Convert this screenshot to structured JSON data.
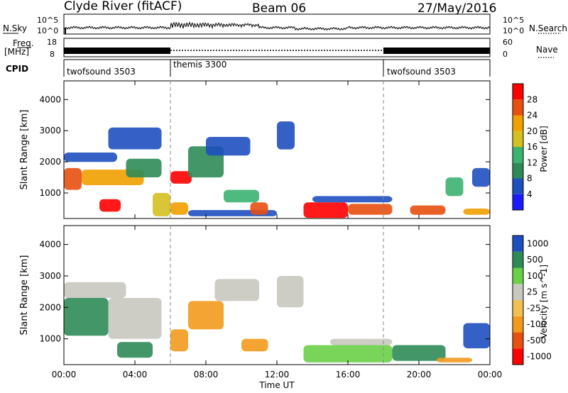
{
  "header": {
    "station": "Clyde River (fitACF)",
    "beam": "Beam 06",
    "date": "27/May/2016"
  },
  "side_labels": {
    "nsky": "N.Sky",
    "nsearch": "N.Search",
    "freq_line1": "Freq.",
    "freq_line2": "[MHz]",
    "nave": "Nave",
    "cpid": "CPID"
  },
  "colors": {
    "power_scale": [
      "#1a1aff",
      "#1f4fbf",
      "#2e8b57",
      "#3cb371",
      "#d4c020",
      "#f0a000",
      "#e85010",
      "#ff0000"
    ],
    "velocity_scale": [
      "#ff0000",
      "#e85010",
      "#f39a1c",
      "#f0c050",
      "#c8c8c0",
      "#6ad048",
      "#2e8b57",
      "#1f4fbf"
    ]
  },
  "chart_data": [
    {
      "type": "line",
      "name": "noise-panel",
      "left_axis_label": "N.Sky",
      "right_axis_label": "N.Search",
      "left_ticks": [
        "10^5",
        "10^0"
      ],
      "right_ticks": [
        "10^5",
        "10^0"
      ],
      "ylim": [
        0,
        5
      ]
    },
    {
      "type": "line",
      "name": "frequency-nave-panel",
      "left_axis_label": "Freq. [MHz]",
      "right_axis_label": "Nave",
      "left_ticks": [
        "18",
        "8"
      ],
      "right_ticks": [
        "60",
        "0"
      ],
      "freq_segments": [
        {
          "start_hr": 0.0,
          "end_hr": 6.0,
          "freq_mhz": 11.0
        },
        {
          "start_hr": 6.0,
          "end_hr": 18.0,
          "freq_mhz": 10.5
        },
        {
          "start_hr": 18.0,
          "end_hr": 24.0,
          "freq_mhz": 11.0
        }
      ]
    },
    {
      "type": "table",
      "name": "cpid-panel",
      "label": "CPID",
      "segments": [
        {
          "start_hr": 0.0,
          "end_hr": 6.0,
          "label": "twofsound 3503"
        },
        {
          "start_hr": 6.0,
          "end_hr": 18.0,
          "label": "themis 3300"
        },
        {
          "start_hr": 18.0,
          "end_hr": 24.0,
          "label": "twofsound 3503"
        }
      ]
    },
    {
      "type": "heatmap",
      "name": "power-panel",
      "ylabel": "Slant Range [km]",
      "yticks": [
        1000,
        2000,
        3000,
        4000
      ],
      "ylim": [
        180,
        4600
      ],
      "colorbar_label": "Power [dB]",
      "colorbar_ticks": [
        "4",
        "8",
        "12",
        "16",
        "20",
        "24",
        "28"
      ],
      "patches": [
        {
          "t0": 0.0,
          "t1": 1.0,
          "r0": 1100,
          "r1": 1800,
          "level": 6
        },
        {
          "t0": 0.0,
          "t1": 3.0,
          "r0": 2000,
          "r1": 2300,
          "level": 1
        },
        {
          "t0": 1.0,
          "t1": 4.5,
          "r0": 1250,
          "r1": 1750,
          "level": 5
        },
        {
          "t0": 2.0,
          "t1": 3.2,
          "r0": 400,
          "r1": 800,
          "level": 7
        },
        {
          "t0": 2.5,
          "t1": 5.5,
          "r0": 2400,
          "r1": 3100,
          "level": 1
        },
        {
          "t0": 3.5,
          "t1": 5.5,
          "r0": 1500,
          "r1": 2100,
          "level": 2
        },
        {
          "t0": 5.0,
          "t1": 6.0,
          "r0": 250,
          "r1": 1000,
          "level": 4
        },
        {
          "t0": 6.0,
          "t1": 7.2,
          "r0": 1300,
          "r1": 1700,
          "level": 7
        },
        {
          "t0": 6.0,
          "t1": 7.0,
          "r0": 300,
          "r1": 700,
          "level": 5
        },
        {
          "t0": 7.0,
          "t1": 9.0,
          "r0": 1500,
          "r1": 2500,
          "level": 2
        },
        {
          "t0": 7.0,
          "t1": 12.0,
          "r0": 250,
          "r1": 450,
          "level": 1
        },
        {
          "t0": 8.0,
          "t1": 10.5,
          "r0": 2200,
          "r1": 2800,
          "level": 1
        },
        {
          "t0": 9.0,
          "t1": 11.0,
          "r0": 700,
          "r1": 1100,
          "level": 3
        },
        {
          "t0": 10.5,
          "t1": 11.5,
          "r0": 300,
          "r1": 700,
          "level": 6
        },
        {
          "t0": 12.0,
          "t1": 13.0,
          "r0": 2400,
          "r1": 3300,
          "level": 1
        },
        {
          "t0": 13.5,
          "t1": 16.0,
          "r0": 200,
          "r1": 700,
          "level": 7
        },
        {
          "t0": 14.0,
          "t1": 18.5,
          "r0": 700,
          "r1": 900,
          "level": 1
        },
        {
          "t0": 16.0,
          "t1": 18.5,
          "r0": 300,
          "r1": 650,
          "level": 6
        },
        {
          "t0": 19.5,
          "t1": 21.5,
          "r0": 300,
          "r1": 600,
          "level": 6
        },
        {
          "t0": 21.5,
          "t1": 22.5,
          "r0": 900,
          "r1": 1500,
          "level": 3
        },
        {
          "t0": 22.5,
          "t1": 24.0,
          "r0": 300,
          "r1": 500,
          "level": 5
        },
        {
          "t0": 23.0,
          "t1": 24.0,
          "r0": 1200,
          "r1": 1800,
          "level": 1
        }
      ]
    },
    {
      "type": "heatmap",
      "name": "velocity-panel",
      "ylabel": "Slant Range [km]",
      "yticks": [
        1000,
        2000,
        3000,
        4000
      ],
      "ylim": [
        180,
        4600
      ],
      "colorbar_label": "Velocity [m s^-1]",
      "colorbar_ticks": [
        "1000",
        "500",
        "100",
        "25",
        "-25",
        "-100",
        "-500",
        "-1000"
      ],
      "patches": [
        {
          "t0": 0.0,
          "t1": 2.5,
          "r0": 1100,
          "r1": 2300,
          "level": 6
        },
        {
          "t0": 0.0,
          "t1": 3.5,
          "r0": 2300,
          "r1": 2800,
          "level": 4
        },
        {
          "t0": 2.5,
          "t1": 5.5,
          "r0": 1000,
          "r1": 2300,
          "level": 4
        },
        {
          "t0": 3.0,
          "t1": 5.0,
          "r0": 400,
          "r1": 900,
          "level": 6
        },
        {
          "t0": 6.0,
          "t1": 7.0,
          "r0": 600,
          "r1": 1300,
          "level": 2
        },
        {
          "t0": 7.0,
          "t1": 9.0,
          "r0": 1300,
          "r1": 2200,
          "level": 2
        },
        {
          "t0": 8.5,
          "t1": 11.0,
          "r0": 2200,
          "r1": 2900,
          "level": 4
        },
        {
          "t0": 10.0,
          "t1": 11.5,
          "r0": 600,
          "r1": 1000,
          "level": 2
        },
        {
          "t0": 12.0,
          "t1": 13.5,
          "r0": 2000,
          "r1": 3000,
          "level": 4
        },
        {
          "t0": 13.5,
          "t1": 18.5,
          "r0": 250,
          "r1": 800,
          "level": 5
        },
        {
          "t0": 15.0,
          "t1": 18.5,
          "r0": 800,
          "r1": 1000,
          "level": 4
        },
        {
          "t0": 18.5,
          "t1": 21.5,
          "r0": 300,
          "r1": 800,
          "level": 6
        },
        {
          "t0": 21.0,
          "t1": 23.0,
          "r0": 250,
          "r1": 400,
          "level": 2
        },
        {
          "t0": 22.5,
          "t1": 24.0,
          "r0": 700,
          "r1": 1500,
          "level": 7
        }
      ]
    }
  ],
  "x_axis": {
    "label": "Time UT",
    "ticks": [
      "00:00",
      "04:00",
      "08:00",
      "12:00",
      "16:00",
      "20:00",
      "00:00"
    ],
    "range_hours": [
      0,
      24
    ]
  }
}
